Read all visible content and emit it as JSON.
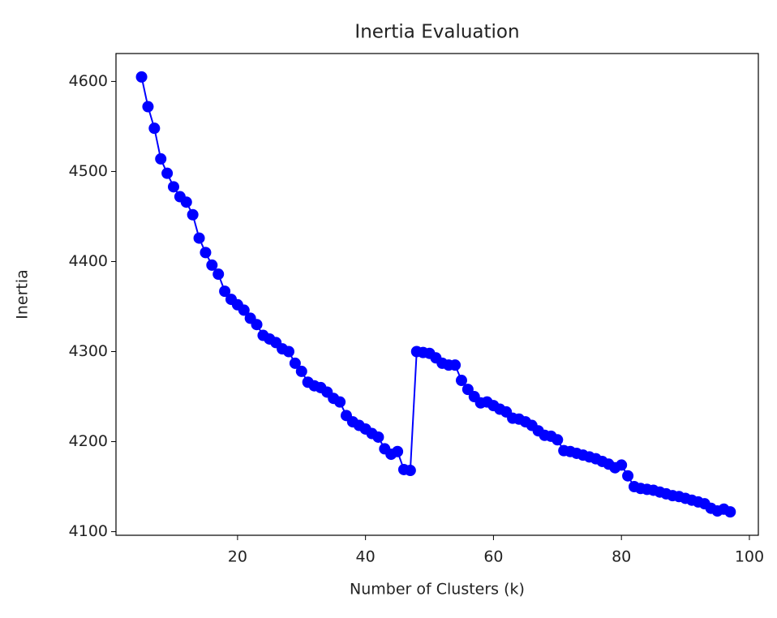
{
  "chart_data": {
    "type": "line",
    "title": "Inertia Evaluation",
    "x_label": "Number of Clusters (k)",
    "y_label": "Inertia",
    "x": [
      5,
      6,
      7,
      8,
      9,
      10,
      11,
      12,
      13,
      14,
      15,
      16,
      17,
      18,
      19,
      20,
      21,
      22,
      23,
      24,
      25,
      26,
      27,
      28,
      29,
      30,
      31,
      32,
      33,
      34,
      35,
      36,
      37,
      38,
      39,
      40,
      41,
      42,
      43,
      44,
      45,
      46,
      47,
      48,
      49,
      50,
      51,
      52,
      53,
      54,
      55,
      56,
      57,
      58,
      59,
      60,
      61,
      62,
      63,
      64,
      65,
      66,
      67,
      68,
      69,
      70,
      71,
      72,
      73,
      74,
      75,
      76,
      77,
      78,
      79,
      80,
      81,
      82,
      83,
      84,
      85,
      86,
      87,
      88,
      89,
      90,
      91,
      92,
      93,
      94,
      95,
      96,
      97
    ],
    "series": [
      {
        "name": "Inertia",
        "color": "#0000ff",
        "values": [
          4605,
          4572,
          4548,
          4514,
          4498,
          4483,
          4472,
          4466,
          4452,
          4426,
          4410,
          4396,
          4386,
          4367,
          4358,
          4352,
          4346,
          4337,
          4330,
          4318,
          4314,
          4310,
          4303,
          4300,
          4287,
          4278,
          4266,
          4262,
          4260,
          4255,
          4248,
          4244,
          4229,
          4222,
          4218,
          4214,
          4209,
          4205,
          4192,
          4186,
          4189,
          4169,
          4168,
          4300,
          4299,
          4298,
          4293,
          4287,
          4285,
          4285,
          4268,
          4258,
          4250,
          4243,
          4244,
          4240,
          4236,
          4233,
          4226,
          4225,
          4222,
          4218,
          4212,
          4207,
          4206,
          4202,
          4190,
          4189,
          4187,
          4185,
          4183,
          4181,
          4178,
          4175,
          4171,
          4174,
          4162,
          4150,
          4148,
          4147,
          4146,
          4144,
          4142,
          4140,
          4139,
          4137,
          4135,
          4133,
          4131,
          4126,
          4123,
          4125,
          4122
        ]
      }
    ],
    "xlim": [
      1,
      101.4
    ],
    "ylim": [
      4096,
      4631
    ],
    "xticks": [
      20,
      40,
      60,
      80,
      100
    ],
    "yticks": [
      4100,
      4200,
      4300,
      4400,
      4500,
      4600
    ]
  }
}
